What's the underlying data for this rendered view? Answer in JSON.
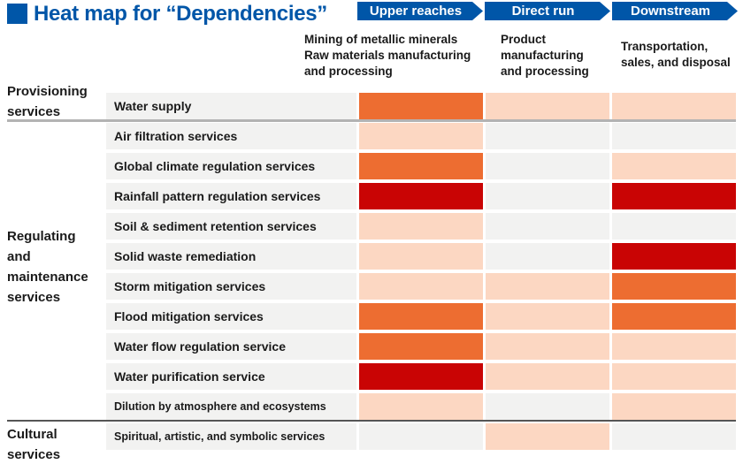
{
  "header": {
    "title": "Heat map for “Dependencies”",
    "accent_color": "#0056A8"
  },
  "chart_data": {
    "type": "heatmap",
    "title": "Heat map for “Dependencies”",
    "legend_position": "none",
    "value_scale": [
      "none",
      "low",
      "medium",
      "high"
    ],
    "palette": {
      "high": "#C90404",
      "medium": "#ED6D31",
      "low": "#FCD7C2",
      "none": "#F2F2F1"
    },
    "columns": [
      {
        "stage": "Upper reaches",
        "description": "Mining of metallic minerals\nRaw materials manufacturing\nand processing"
      },
      {
        "stage": "Direct run",
        "description": "Product\nmanufacturing\nand processing"
      },
      {
        "stage": "Downstream",
        "description": "Transportation,\nsales, and disposal"
      }
    ],
    "row_groups": [
      {
        "label": "Provisioning\nservices",
        "row_indexes": [
          0
        ]
      },
      {
        "label": "Regulating\nand\nmaintenance\nservices",
        "row_indexes": [
          1,
          2,
          3,
          4,
          5,
          6,
          7,
          8,
          9,
          10
        ]
      },
      {
        "label": "Cultural\nservices",
        "row_indexes": [
          11
        ]
      }
    ],
    "rows": [
      {
        "label": "Water supply",
        "levels": [
          "medium",
          "low",
          "low"
        ]
      },
      {
        "label": "Air filtration services",
        "levels": [
          "low",
          "none",
          "none"
        ]
      },
      {
        "label": "Global climate regulation services",
        "levels": [
          "medium",
          "none",
          "low"
        ]
      },
      {
        "label": "Rainfall pattern regulation services",
        "levels": [
          "high",
          "none",
          "high"
        ]
      },
      {
        "label": "Soil & sediment retention services",
        "levels": [
          "low",
          "none",
          "none"
        ]
      },
      {
        "label": "Solid waste remediation",
        "levels": [
          "low",
          "none",
          "high"
        ]
      },
      {
        "label": "Storm mitigation services",
        "levels": [
          "low",
          "low",
          "medium"
        ]
      },
      {
        "label": "Flood mitigation services",
        "levels": [
          "medium",
          "low",
          "medium"
        ]
      },
      {
        "label": "Water flow regulation service",
        "levels": [
          "medium",
          "low",
          "low"
        ]
      },
      {
        "label": "Water purification service",
        "levels": [
          "high",
          "low",
          "low"
        ]
      },
      {
        "label": "Dilution by atmosphere and ecosystems",
        "levels": [
          "low",
          "none",
          "low"
        ]
      },
      {
        "label": "Spiritual, artistic, and symbolic services",
        "levels": [
          "none",
          "low",
          "none"
        ]
      }
    ]
  }
}
